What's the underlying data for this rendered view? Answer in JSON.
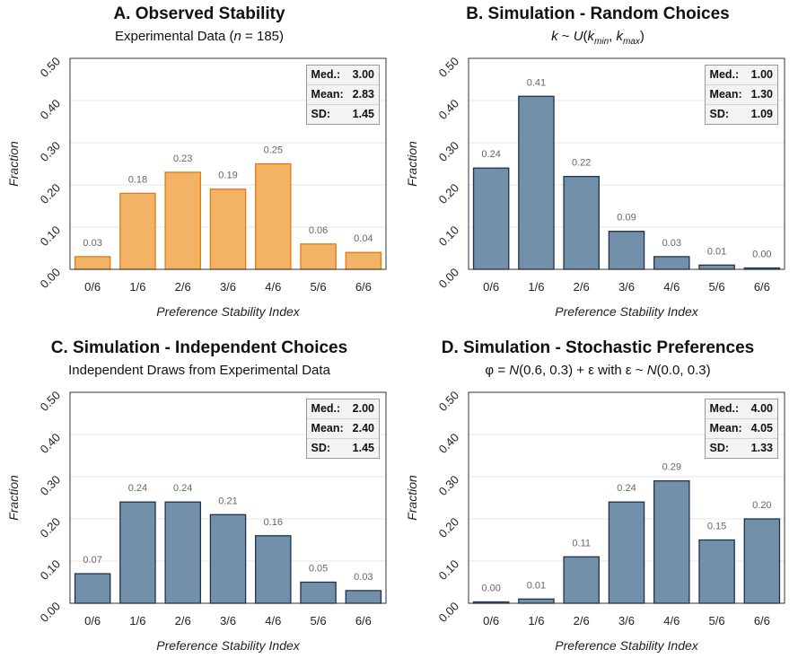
{
  "chart_data": [
    {
      "type": "bar",
      "title": "A. Observed Stability",
      "subtitle_parts": [
        "Experimental Data (",
        "n",
        " = 185)"
      ],
      "xlabel": "Preference Stability Index",
      "ylabel": "Fraction",
      "categories": [
        "0/6",
        "1/6",
        "2/6",
        "3/6",
        "4/6",
        "5/6",
        "6/6"
      ],
      "values": [
        0.03,
        0.18,
        0.23,
        0.19,
        0.25,
        0.06,
        0.04
      ],
      "value_labels": [
        "0.03",
        "0.18",
        "0.23",
        "0.19",
        "0.25",
        "0.06",
        "0.04"
      ],
      "ylim": [
        0,
        0.5
      ],
      "yticks": [
        "0.00",
        "0.10",
        "0.20",
        "0.30",
        "0.40",
        "0.50"
      ],
      "grid": true,
      "bar_color": "#f2b464",
      "bar_edge": "#e07a18",
      "stats": [
        {
          "label": "Med.:",
          "value": "3.00"
        },
        {
          "label": "Mean:",
          "value": "2.83"
        },
        {
          "label": "SD:",
          "value": "1.45"
        }
      ]
    },
    {
      "type": "bar",
      "title": "B. Simulation - Random Choices",
      "subtitle_parts": [
        "k",
        " ~ ",
        "U",
        "(",
        "k",
        "min",
        ", ",
        "k",
        "max",
        ")"
      ],
      "xlabel": "Preference Stability Index",
      "ylabel": "Fraction",
      "categories": [
        "0/6",
        "1/6",
        "2/6",
        "3/6",
        "4/6",
        "5/6",
        "6/6"
      ],
      "values": [
        0.24,
        0.41,
        0.22,
        0.09,
        0.03,
        0.01,
        0.0
      ],
      "value_labels": [
        "0.24",
        "0.41",
        "0.22",
        "0.09",
        "0.03",
        "0.01",
        "0.00"
      ],
      "ylim": [
        0,
        0.5
      ],
      "yticks": [
        "0.00",
        "0.10",
        "0.20",
        "0.30",
        "0.40",
        "0.50"
      ],
      "grid": true,
      "bar_color": "#7390ab",
      "bar_edge": "#1b3352",
      "stats": [
        {
          "label": "Med.:",
          "value": "1.00"
        },
        {
          "label": "Mean:",
          "value": "1.30"
        },
        {
          "label": "SD:",
          "value": "1.09"
        }
      ]
    },
    {
      "type": "bar",
      "title": "C. Simulation - Independent Choices",
      "subtitle_parts": [
        "Independent Draws from Experimental Data"
      ],
      "xlabel": "Preference Stability Index",
      "ylabel": "Fraction",
      "categories": [
        "0/6",
        "1/6",
        "2/6",
        "3/6",
        "4/6",
        "5/6",
        "6/6"
      ],
      "values": [
        0.07,
        0.24,
        0.24,
        0.21,
        0.16,
        0.05,
        0.03
      ],
      "value_labels": [
        "0.07",
        "0.24",
        "0.24",
        "0.21",
        "0.16",
        "0.05",
        "0.03"
      ],
      "ylim": [
        0,
        0.5
      ],
      "yticks": [
        "0.00",
        "0.10",
        "0.20",
        "0.30",
        "0.40",
        "0.50"
      ],
      "grid": true,
      "bar_color": "#7390ab",
      "bar_edge": "#1b3352",
      "stats": [
        {
          "label": "Med.:",
          "value": "2.00"
        },
        {
          "label": "Mean:",
          "value": "2.40"
        },
        {
          "label": "SD:",
          "value": "1.45"
        }
      ]
    },
    {
      "type": "bar",
      "title": "D. Simulation - Stochastic Preferences",
      "subtitle_parts": [
        "φ = ",
        "N",
        "(0.6, 0.3) + ε with ε ~ ",
        "N",
        "(0.0, 0.3)"
      ],
      "xlabel": "Preference Stability Index",
      "ylabel": "Fraction",
      "categories": [
        "0/6",
        "1/6",
        "2/6",
        "3/6",
        "4/6",
        "5/6",
        "6/6"
      ],
      "values": [
        0.0,
        0.01,
        0.11,
        0.24,
        0.29,
        0.15,
        0.2
      ],
      "value_labels": [
        "0.00",
        "0.01",
        "0.11",
        "0.24",
        "0.29",
        "0.15",
        "0.20"
      ],
      "ylim": [
        0,
        0.5
      ],
      "yticks": [
        "0.00",
        "0.10",
        "0.20",
        "0.30",
        "0.40",
        "0.50"
      ],
      "grid": true,
      "bar_color": "#7390ab",
      "bar_edge": "#1b3352",
      "stats": [
        {
          "label": "Med.:",
          "value": "4.00"
        },
        {
          "label": "Mean:",
          "value": "4.05"
        },
        {
          "label": "SD:",
          "value": "1.33"
        }
      ]
    }
  ]
}
